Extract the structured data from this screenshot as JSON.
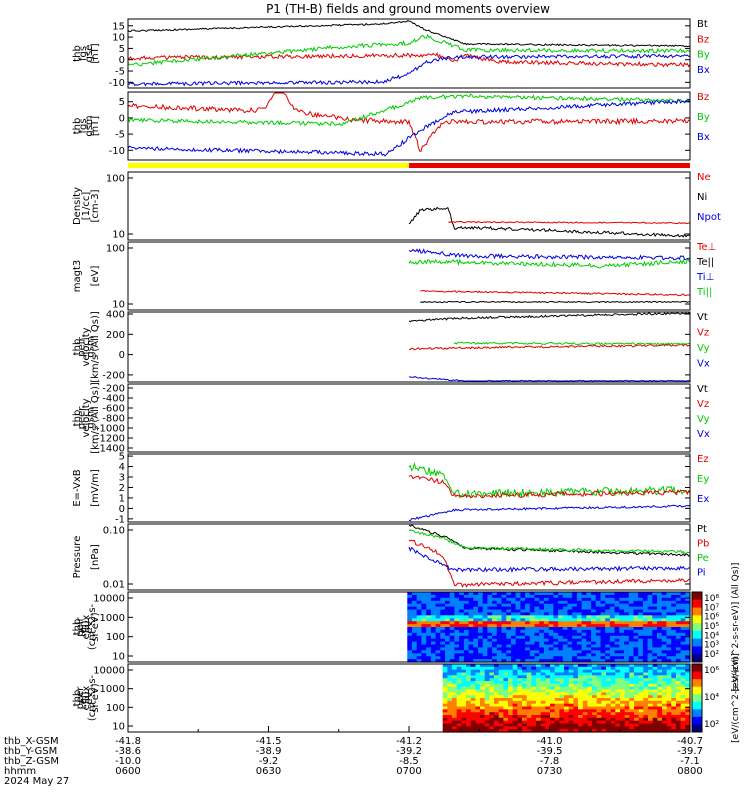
{
  "title": "P1 (TH-B) fields and ground moments overview",
  "colors": {
    "black": "#000000",
    "red": "#e00000",
    "green": "#00cc00",
    "blue": "#0000dd",
    "yellow": "#ffff00",
    "bar_red": "#ee0000"
  },
  "chart_data": [
    {
      "type": "line",
      "ylabel": [
        "thb",
        "fgs",
        "gse",
        "[nT]"
      ],
      "yticks": [
        15,
        10,
        5,
        0,
        -5,
        -10
      ],
      "ylim": [
        -12.5,
        18
      ],
      "legend": [
        "Bt",
        "Bz",
        "By",
        "Bx"
      ],
      "legend_colors": [
        "black",
        "red",
        "green",
        "blue"
      ]
    },
    {
      "type": "line",
      "ylabel": [
        "thb",
        "fgs",
        "gsm",
        "[nT]"
      ],
      "yticks": [
        5,
        0,
        -5,
        -10
      ],
      "ylim": [
        -13,
        8
      ],
      "legend": [
        "Bz",
        "By",
        "Bx"
      ],
      "legend_colors": [
        "red",
        "green",
        "blue"
      ]
    },
    {
      "type": "line",
      "ylabel": [
        "Density",
        "[1/cc]",
        "[cm-3]"
      ],
      "yticks": [
        "100",
        "10"
      ],
      "legend": [
        "Ne",
        "Ni",
        "Npot"
      ],
      "legend_colors": [
        "red",
        "black",
        "blue"
      ]
    },
    {
      "type": "line",
      "ylabel": [
        "magt3",
        "[eV]"
      ],
      "yticks": [
        "100",
        "10"
      ],
      "legend": [
        "Te⊥",
        "Te||",
        "Ti⊥",
        "Ti||"
      ],
      "legend_colors": [
        "red",
        "black",
        "blue",
        "green"
      ]
    },
    {
      "type": "line",
      "ylabel": [
        "thb",
        "peir",
        "velocity",
        "gsm",
        "[km/s (All Qs)]"
      ],
      "yticks": [
        400,
        200,
        0,
        -200
      ],
      "ylim": [
        -270,
        420
      ],
      "legend": [
        "Vt",
        "Vz",
        "Vy",
        "Vx"
      ],
      "legend_colors": [
        "black",
        "red",
        "green",
        "blue"
      ]
    },
    {
      "type": "line",
      "ylabel": [
        "thb",
        "peer",
        "velocity",
        "gsm",
        "[km/s (All Qs)]"
      ],
      "yticks": [
        -200,
        -400,
        -600,
        -800,
        -1000,
        -1200,
        -1400
      ],
      "ylim": [
        -1480,
        -120
      ],
      "legend": [
        "Vt",
        "Vz",
        "Vy",
        "Vx"
      ],
      "legend_colors": [
        "black",
        "red",
        "green",
        "blue"
      ]
    },
    {
      "type": "line",
      "ylabel": [
        "E=-VxB",
        "[mV/m]"
      ],
      "yticks": [
        5,
        4,
        3,
        2,
        1,
        0,
        -1
      ],
      "ylim": [
        -1.3,
        5.2
      ],
      "legend": [
        "Ez",
        "Ey",
        "Ex"
      ],
      "legend_colors": [
        "red",
        "green",
        "blue"
      ]
    },
    {
      "type": "line",
      "ylabel": [
        "Pressure",
        "[nPa]"
      ],
      "yticks": [
        "0.10",
        "0.01"
      ],
      "legend": [
        "Pt",
        "Pb",
        "Pe",
        "Pi"
      ],
      "legend_colors": [
        "black",
        "red",
        "green",
        "blue"
      ]
    },
    {
      "type": "heatmap",
      "ylabel": [
        "thb",
        "peir",
        "en",
        "eflux",
        "eV",
        "(cm^2-s-",
        "sr-eV)"
      ],
      "yticks": [
        "10000",
        "1000",
        "100",
        "10"
      ]
    },
    {
      "type": "heatmap",
      "ylabel": [
        "thb",
        "peer",
        "en",
        "eflux",
        "eV",
        "(cm^2-s-",
        "sr-eV)"
      ],
      "yticks": [
        "10000",
        "1000",
        "100",
        "10"
      ]
    }
  ],
  "colorbar1": {
    "ticks": [
      "10⁸",
      "10⁷",
      "10⁶",
      "10⁵",
      "10⁴",
      "10³",
      "10²"
    ],
    "label": "[eV/(cm^2-s-sr-eV)] (All Qs)]"
  },
  "colorbar2": {
    "ticks": [
      "10⁶",
      "10⁴",
      "10²"
    ],
    "label": "[eV/(cm^2-s-sr-eV)]"
  },
  "xaxis": {
    "rows": [
      {
        "label": "thb_X-GSM",
        "values": [
          "-41.8",
          "-41.5",
          "-41.2",
          "-41.0",
          "-40.7"
        ]
      },
      {
        "label": "thb_Y-GSM",
        "values": [
          "-38.6",
          "-38.9",
          "-39.2",
          "-39.5",
          "-39.7"
        ]
      },
      {
        "label": "thb_Z-GSM",
        "values": [
          "-10.0",
          "-9.2",
          "-8.5",
          "-7.8",
          "-7.1"
        ]
      },
      {
        "label": "hhmm",
        "values": [
          "0600",
          "0630",
          "0700",
          "0730",
          "0800"
        ]
      }
    ],
    "date": "2024 May 27"
  }
}
